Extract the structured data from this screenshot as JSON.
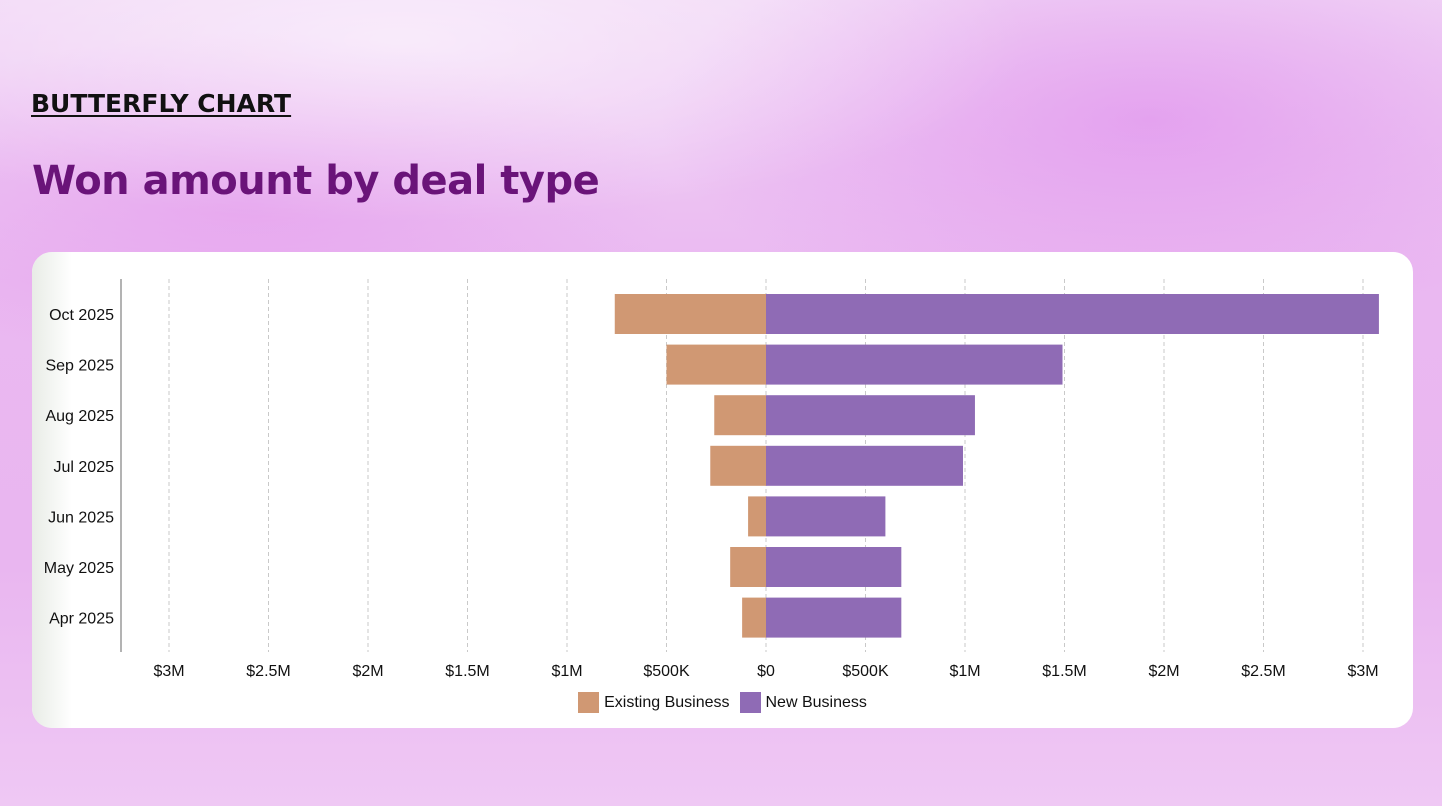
{
  "header": {
    "eyebrow": "BUTTERFLY CHART",
    "title": "Won amount by deal type"
  },
  "chart_data": {
    "type": "bar",
    "orientation": "horizontal-butterfly",
    "categories": [
      "Oct 2025",
      "Sep 2025",
      "Aug 2025",
      "Jul 2025",
      "Jun 2025",
      "May 2025",
      "Apr 2025"
    ],
    "series": [
      {
        "name": "Existing Business",
        "side": "left",
        "color": "#d09873",
        "values": [
          760000,
          500000,
          260000,
          280000,
          90000,
          180000,
          120000
        ]
      },
      {
        "name": "New Business",
        "side": "right",
        "color": "#8f6bb5",
        "values": [
          3080000,
          1490000,
          1050000,
          990000,
          600000,
          680000,
          680000
        ]
      }
    ],
    "xlim": [
      -3000000,
      3000000
    ],
    "xticks": [
      {
        "value": -3000000,
        "label": "$3M"
      },
      {
        "value": -2500000,
        "label": "$2.5M"
      },
      {
        "value": -2000000,
        "label": "$2M"
      },
      {
        "value": -1500000,
        "label": "$1.5M"
      },
      {
        "value": -1000000,
        "label": "$1M"
      },
      {
        "value": -500000,
        "label": "$500K"
      },
      {
        "value": 0,
        "label": "$0"
      },
      {
        "value": 500000,
        "label": "$500K"
      },
      {
        "value": 1000000,
        "label": "$1M"
      },
      {
        "value": 1500000,
        "label": "$1.5M"
      },
      {
        "value": 2000000,
        "label": "$2M"
      },
      {
        "value": 2500000,
        "label": "$2.5M"
      },
      {
        "value": 3000000,
        "label": "$3M"
      }
    ],
    "grid": true,
    "legend_position": "bottom-center"
  }
}
